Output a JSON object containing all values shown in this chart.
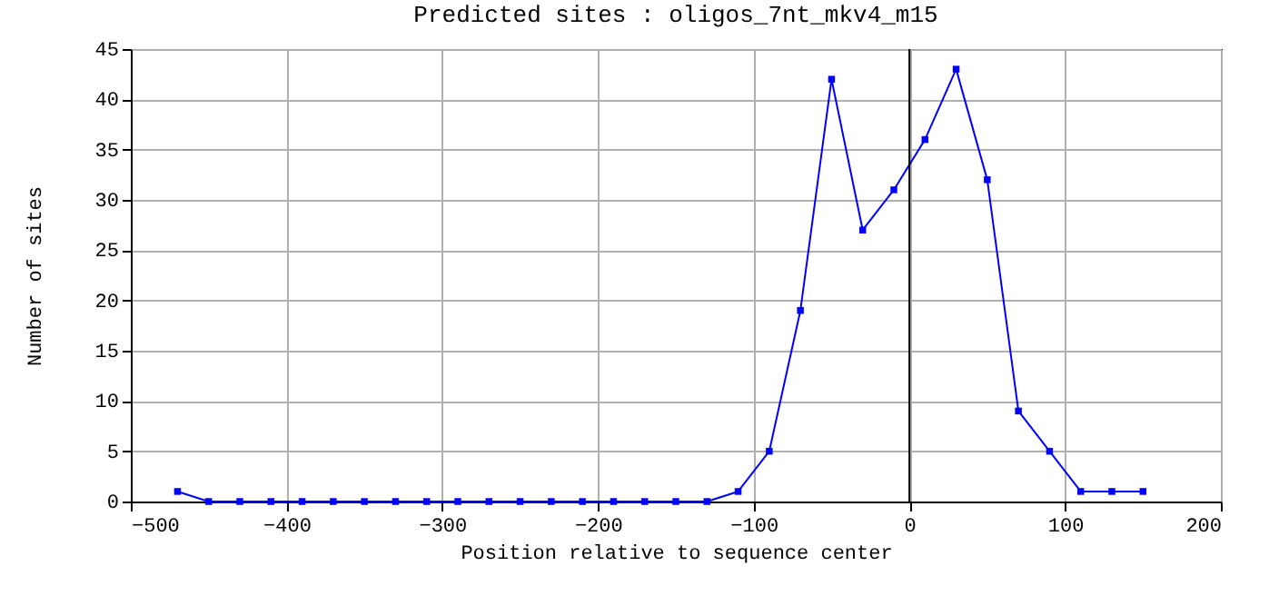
{
  "chart_data": {
    "type": "line",
    "title": "Predicted sites : oligos_7nt_mkv4_m15",
    "xlabel": "Position relative to sequence center",
    "ylabel": "Number of sites",
    "x": [
      -470,
      -450,
      -430,
      -410,
      -390,
      -370,
      -350,
      -330,
      -310,
      -290,
      -270,
      -250,
      -230,
      -210,
      -190,
      -170,
      -150,
      -130,
      -110,
      -90,
      -70,
      -50,
      -30,
      -10,
      10,
      30,
      50,
      70,
      90,
      110,
      130,
      150
    ],
    "series": [
      {
        "color": "#0000ff",
        "values": [
          1,
          0,
          0,
          0,
          0,
          0,
          0,
          0,
          0,
          0,
          0,
          0,
          0,
          0,
          0,
          0,
          0,
          0,
          1,
          5,
          19,
          42,
          27,
          31,
          36,
          43,
          32,
          9,
          5,
          1,
          1,
          1
        ]
      }
    ],
    "xlim": [
      -500,
      200
    ],
    "xticks": [
      -500,
      -400,
      -300,
      -200,
      -100,
      0,
      100,
      200
    ],
    "ylim": [
      0,
      45
    ],
    "yticks": [
      0,
      5,
      10,
      15,
      20,
      25,
      30,
      35,
      40,
      45
    ],
    "ref_lines": [
      {
        "axis": "x",
        "value": 0,
        "color": "#000000"
      }
    ],
    "grid": true,
    "marker": "square",
    "line_style": "solid"
  }
}
